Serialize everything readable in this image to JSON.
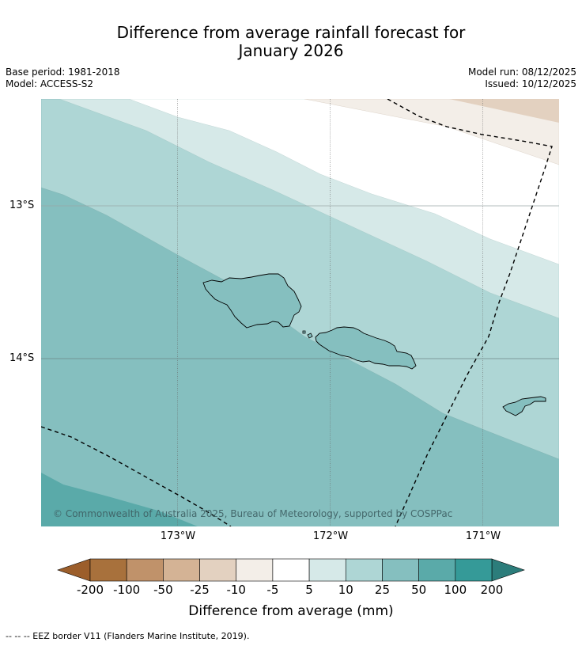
{
  "title_line1": "Difference from average rainfall forecast for",
  "title_line2": "January 2026",
  "meta": {
    "base_period": "Base period: 1981-2018",
    "model": "Model: ACCESS-S2",
    "model_run": "Model run: 08/12/2025",
    "issued": "Issued: 10/12/2025"
  },
  "map": {
    "lat_labels": [
      "13°S",
      "14°S"
    ],
    "lon_labels": [
      "173°W",
      "172°W",
      "171°W"
    ],
    "copyright": "© Commonwealth of Australia 2025, Bureau of Meteorology, supported by COSPPac",
    "features": [
      "Savai'i",
      "Upolu",
      "Tutuila",
      "EEZ border"
    ]
  },
  "legend": {
    "ticks": [
      "-200",
      "-100",
      "-50",
      "-25",
      "-10",
      "-5",
      "5",
      "10",
      "25",
      "50",
      "100",
      "200"
    ],
    "colors": [
      "#a8713c",
      "#c0926a",
      "#d4b395",
      "#e3d1c0",
      "#f3eee8",
      "#ffffff",
      "#d6e9e8",
      "#aed6d5",
      "#85bfbf",
      "#5aaaa9",
      "#359a98"
    ],
    "under_color": "#9c5e2b",
    "over_color": "#2c7d7b",
    "title": "Difference from average (mm)"
  },
  "footnote": "--  --  -- EEZ border V11 (Flanders Marine Institute, 2019)."
}
